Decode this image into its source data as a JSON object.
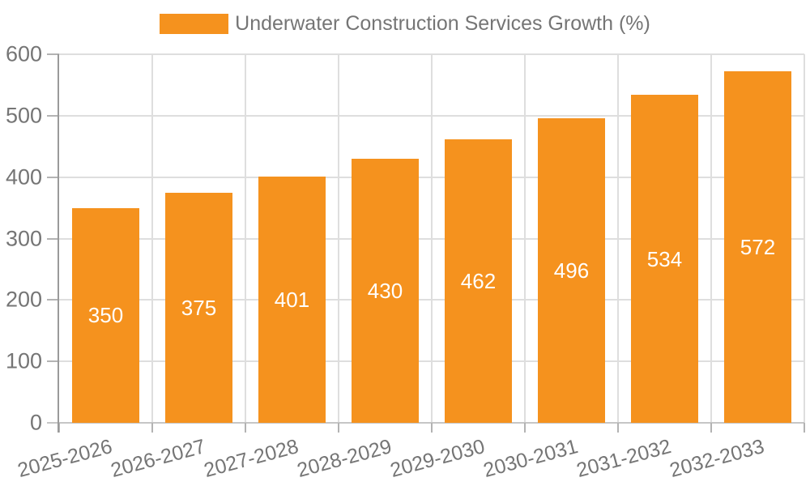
{
  "legend": {
    "label": "Underwater Construction Services Growth (%)"
  },
  "colors": {
    "bar": "#F5921E",
    "bar_label": "#FFFFFF",
    "grid_line": "#DEDEDE",
    "axis_line": "#9A9A9A",
    "axis_line_bottom": "#C6C6C6",
    "tick": "#B3B3B3",
    "tick_label": "#757575",
    "background": "#FFFFFF"
  },
  "chart_data": {
    "type": "bar",
    "title": "",
    "legend": [
      "Underwater Construction Services Growth (%)"
    ],
    "legend_position": "top-center",
    "categories": [
      "2025-2026",
      "2026-2027",
      "2027-2028",
      "2028-2029",
      "2029-2030",
      "2030-2031",
      "2031-2032",
      "2032-2033"
    ],
    "values": [
      350,
      375,
      401,
      430,
      462,
      496,
      534,
      572
    ],
    "xlabel": "",
    "ylabel": "",
    "ylim": [
      0,
      600
    ],
    "yticks": [
      0,
      100,
      200,
      300,
      400,
      500,
      600
    ],
    "grid": true,
    "vertical_grid_at_category_boundaries": true,
    "bar_value_labels": "inside-center-white",
    "x_tick_rotation_deg": -15
  }
}
